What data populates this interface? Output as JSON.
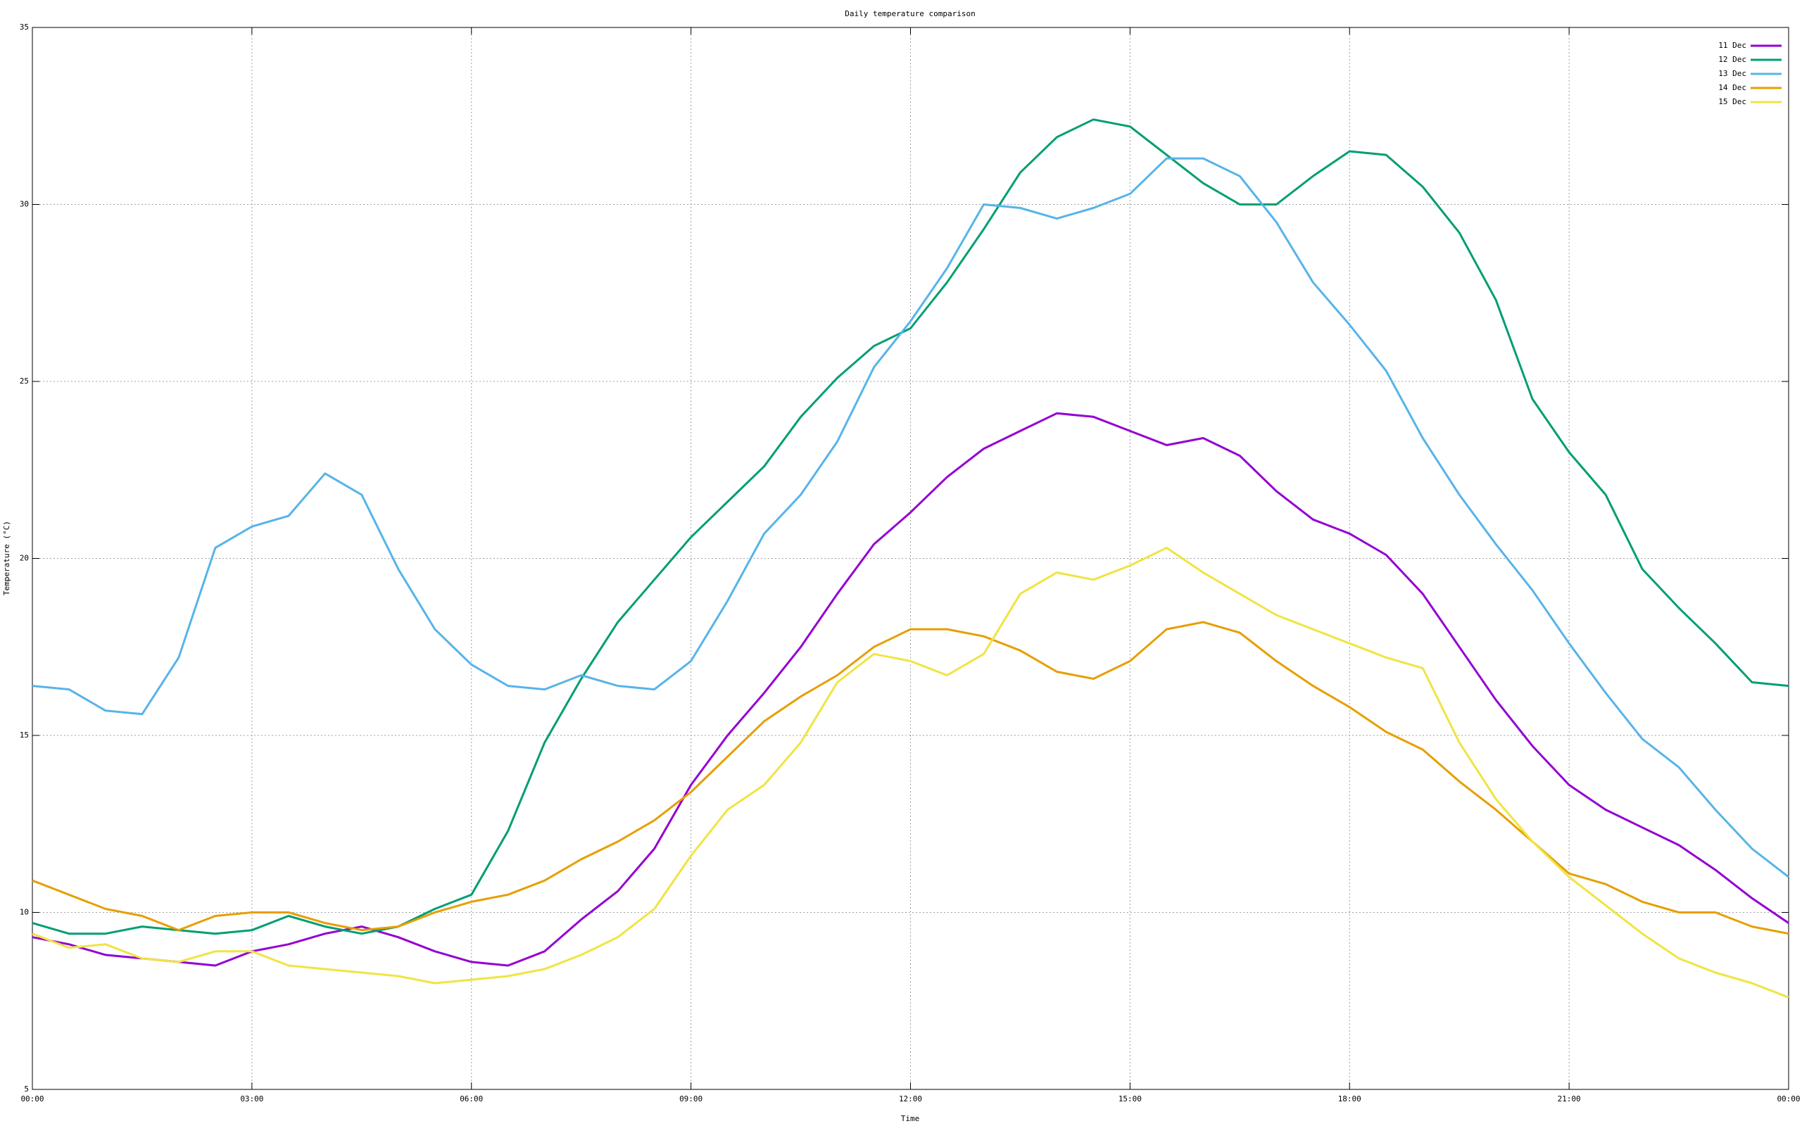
{
  "chart_data": {
    "type": "line",
    "title": "Daily temperature comparison",
    "xlabel": "Time",
    "ylabel": "Temperature (°C)",
    "x": [
      0,
      0.5,
      1,
      1.5,
      2,
      2.5,
      3,
      3.5,
      4,
      4.5,
      5,
      5.5,
      6,
      6.5,
      7,
      7.5,
      8,
      8.5,
      9,
      9.5,
      10,
      10.5,
      11,
      11.5,
      12,
      12.5,
      13,
      13.5,
      14,
      14.5,
      15,
      15.5,
      16,
      16.5,
      17,
      17.5,
      18,
      18.5,
      19,
      19.5,
      20,
      20.5,
      21,
      21.5,
      22,
      22.5,
      23,
      23.5,
      24
    ],
    "xlim": [
      0,
      24
    ],
    "xticks": [
      {
        "value": 0,
        "label": "00:00"
      },
      {
        "value": 3,
        "label": "03:00"
      },
      {
        "value": 6,
        "label": "06:00"
      },
      {
        "value": 9,
        "label": "09:00"
      },
      {
        "value": 12,
        "label": "12:00"
      },
      {
        "value": 15,
        "label": "15:00"
      },
      {
        "value": 18,
        "label": "18:00"
      },
      {
        "value": 21,
        "label": "21:00"
      },
      {
        "value": 24,
        "label": "00:00"
      }
    ],
    "ylim": [
      5,
      35
    ],
    "yticks": [
      5,
      10,
      15,
      20,
      25,
      30,
      35
    ],
    "grid": true,
    "legend": "top-right",
    "series": [
      {
        "name": "11 Dec",
        "color": "#9400d3",
        "values": [
          9.3,
          9.1,
          8.8,
          8.7,
          8.6,
          8.5,
          8.9,
          9.1,
          9.4,
          9.6,
          9.3,
          8.9,
          8.6,
          8.5,
          8.9,
          9.8,
          10.6,
          11.8,
          13.6,
          15.0,
          16.2,
          17.5,
          19.0,
          20.4,
          21.3,
          22.3,
          23.1,
          23.6,
          24.1,
          24.0,
          23.6,
          23.2,
          23.4,
          22.9,
          21.9,
          21.1,
          20.7,
          20.1,
          19.0,
          17.5,
          16.0,
          14.7,
          13.6,
          12.9,
          12.4,
          11.9,
          11.2,
          10.4,
          9.7
        ]
      },
      {
        "name": "12 Dec",
        "color": "#009e73",
        "values": [
          9.7,
          9.4,
          9.4,
          9.6,
          9.5,
          9.4,
          9.5,
          9.9,
          9.6,
          9.4,
          9.6,
          10.1,
          10.5,
          12.3,
          14.8,
          16.6,
          18.2,
          19.4,
          20.6,
          21.6,
          22.6,
          24.0,
          25.1,
          26.0,
          26.5,
          27.8,
          29.3,
          30.9,
          31.9,
          32.4,
          32.2,
          31.4,
          30.6,
          30.0,
          30.0,
          30.8,
          31.5,
          31.4,
          30.5,
          29.2,
          27.3,
          24.5,
          23.0,
          21.8,
          19.7,
          18.6,
          17.6,
          16.5,
          16.4
        ]
      },
      {
        "name": "13 Dec",
        "color": "#56b4e9",
        "values": [
          16.4,
          16.3,
          15.7,
          15.6,
          17.2,
          20.3,
          20.9,
          21.2,
          22.4,
          21.8,
          19.7,
          18.0,
          17.0,
          16.4,
          16.3,
          16.7,
          16.4,
          16.3,
          17.1,
          18.8,
          20.7,
          21.8,
          23.3,
          25.4,
          26.7,
          28.2,
          30.0,
          29.9,
          29.6,
          29.9,
          30.3,
          31.3,
          31.3,
          30.8,
          29.5,
          27.8,
          26.6,
          25.3,
          23.4,
          21.8,
          20.4,
          19.1,
          17.6,
          16.2,
          14.9,
          14.1,
          12.9,
          11.8,
          11.0
        ]
      },
      {
        "name": "14 Dec",
        "color": "#e69f00",
        "values": [
          10.9,
          10.5,
          10.1,
          9.9,
          9.5,
          9.9,
          10.0,
          10.0,
          9.7,
          9.5,
          9.6,
          10.0,
          10.3,
          10.5,
          10.9,
          11.5,
          12.0,
          12.6,
          13.4,
          14.4,
          15.4,
          16.1,
          16.7,
          17.5,
          18.0,
          18.0,
          17.8,
          17.4,
          16.8,
          16.6,
          17.1,
          18.0,
          18.2,
          17.9,
          17.1,
          16.4,
          15.8,
          15.1,
          14.6,
          13.7,
          12.9,
          12.0,
          11.1,
          10.8,
          10.3,
          10.0,
          10.0,
          9.6,
          9.4
        ]
      },
      {
        "name": "15 Dec",
        "color": "#f0e442",
        "values": [
          9.4,
          9.0,
          9.1,
          8.7,
          8.6,
          8.9,
          8.9,
          8.5,
          8.4,
          8.3,
          8.2,
          8.0,
          8.1,
          8.2,
          8.4,
          8.8,
          9.3,
          10.1,
          11.6,
          12.9,
          13.6,
          14.8,
          16.5,
          17.3,
          17.1,
          16.7,
          17.3,
          19.0,
          19.6,
          19.4,
          19.8,
          20.3,
          19.6,
          19.0,
          18.4,
          18.0,
          17.6,
          17.2,
          16.9,
          14.8,
          13.2,
          12.0,
          11.0,
          10.2,
          9.4,
          8.7,
          8.3,
          8.0,
          7.6
        ]
      }
    ]
  }
}
